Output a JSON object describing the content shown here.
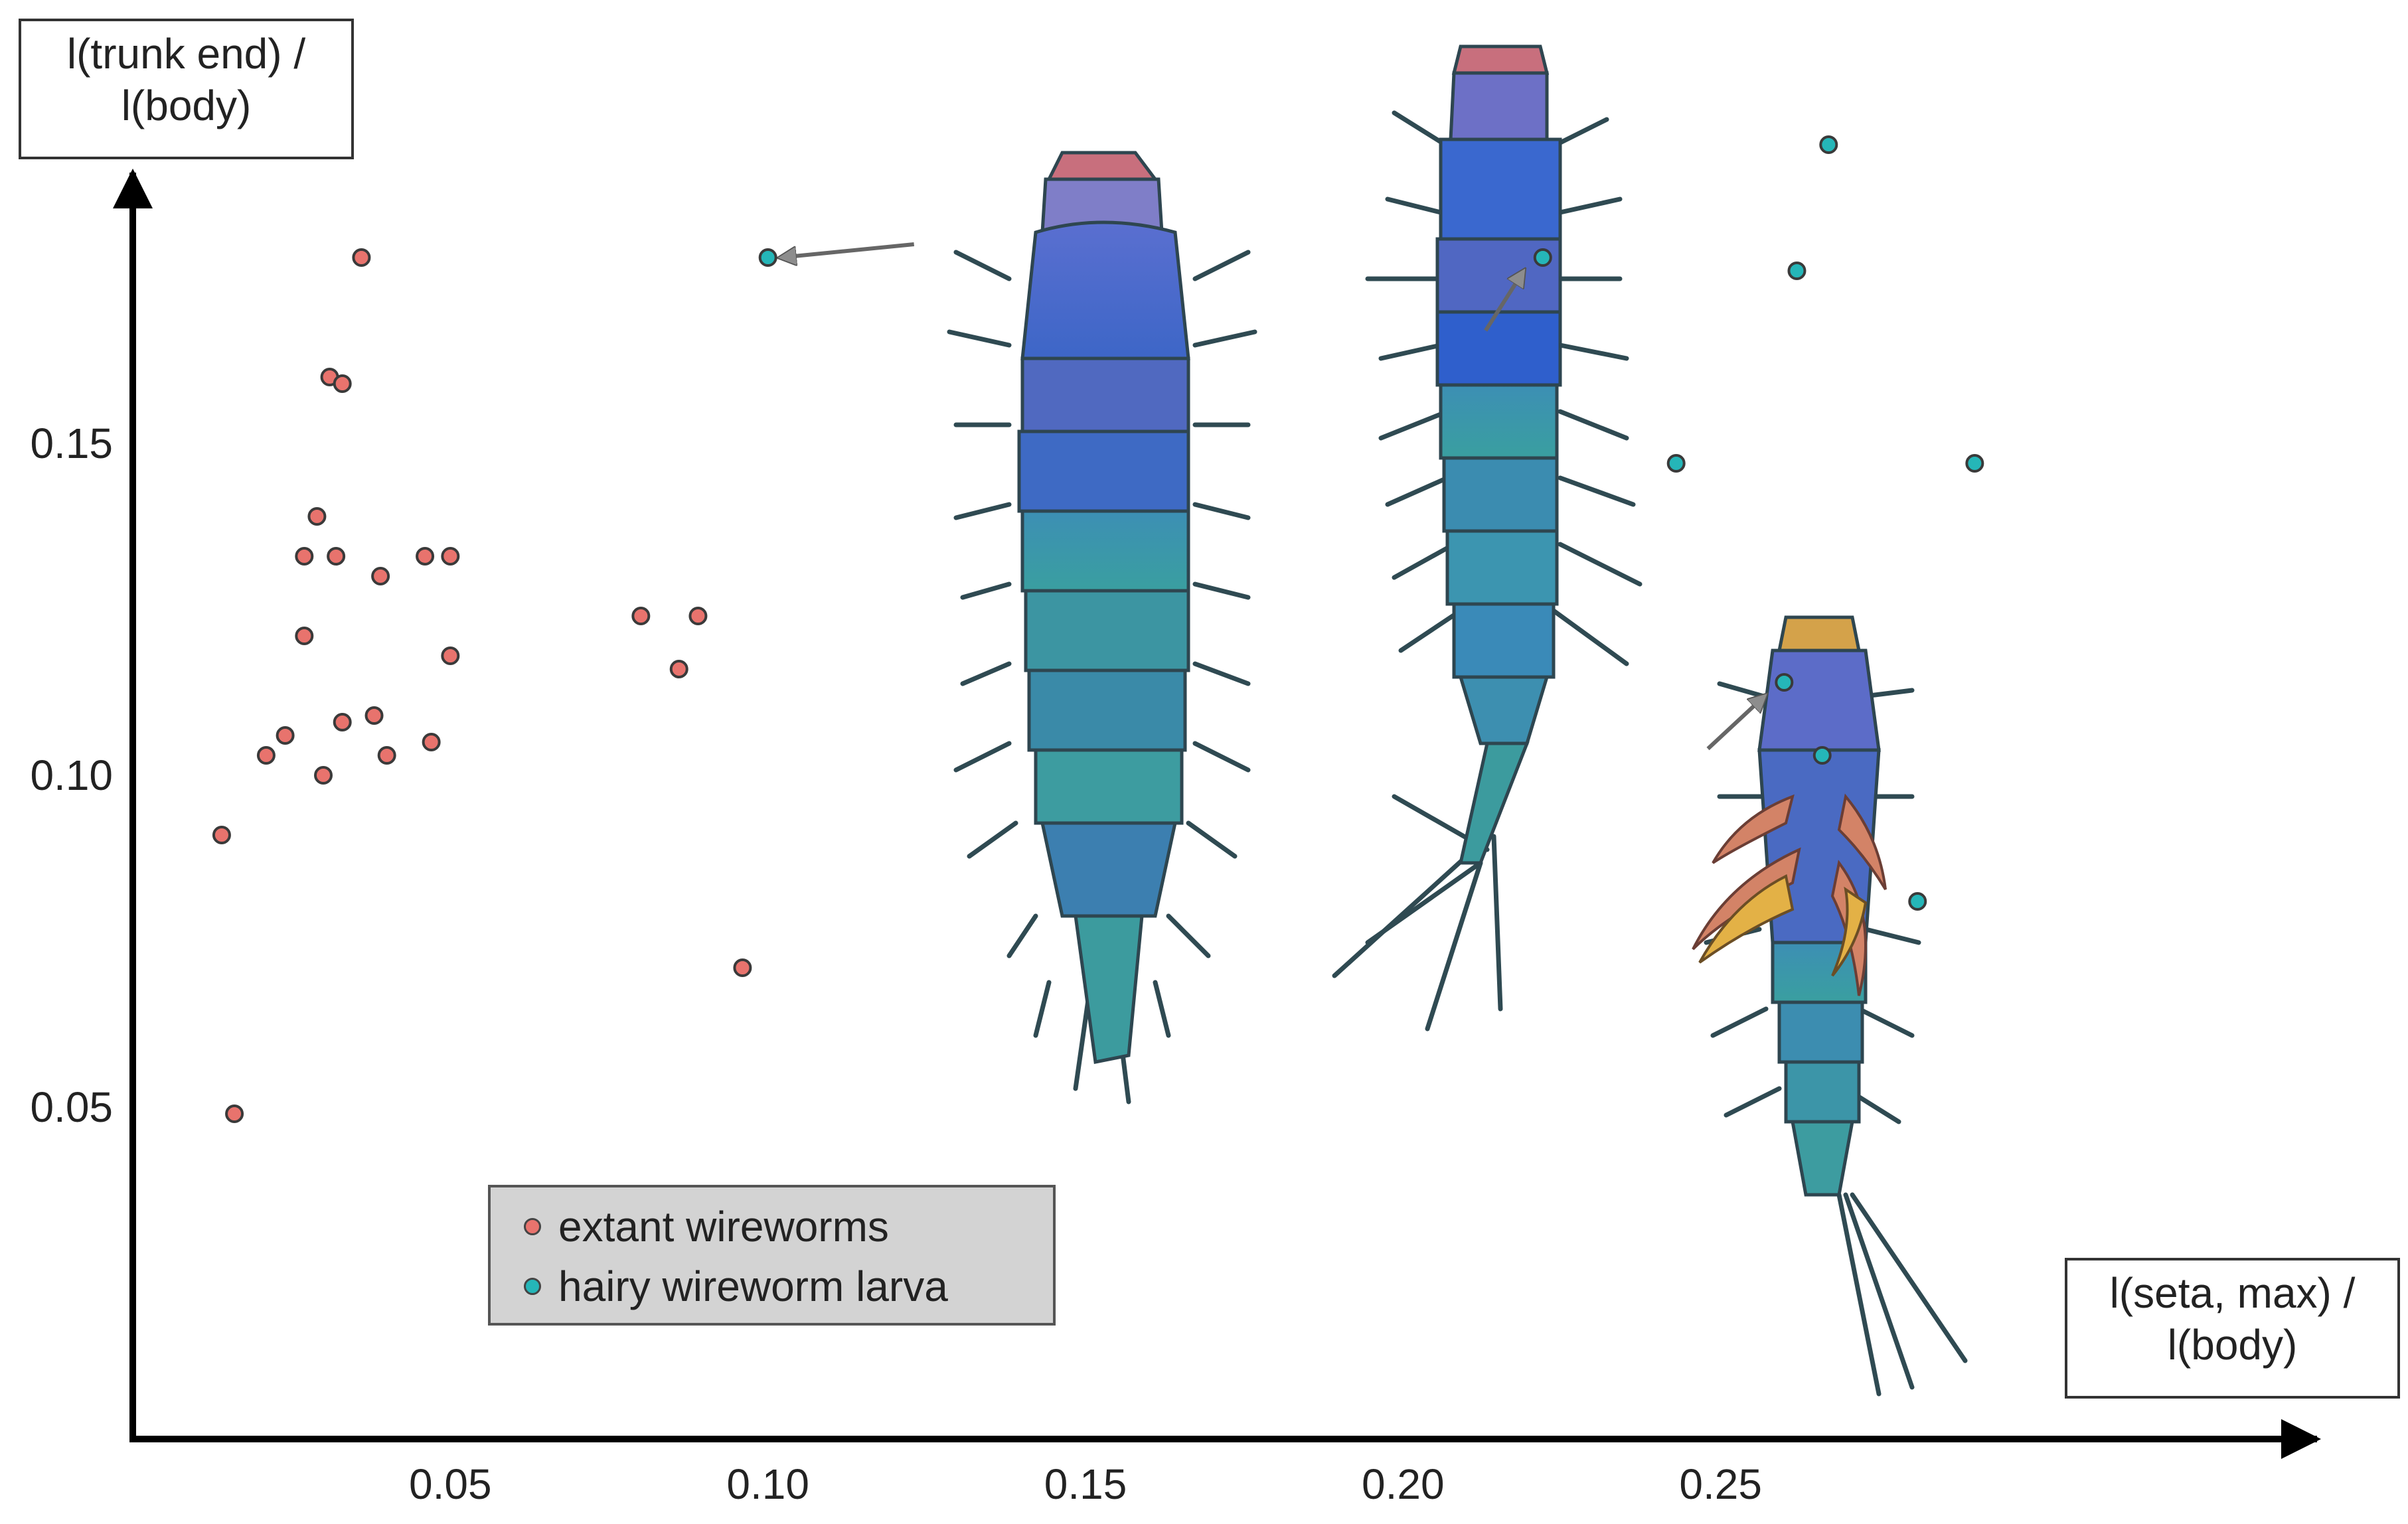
{
  "chart_data": {
    "type": "scatter",
    "xlabel": "l(seta, max) / l(body)",
    "ylabel": "l(trunk end) / l(body)",
    "xlabel_lines": [
      "l(seta, max) /",
      "l(body)"
    ],
    "ylabel_lines": [
      "l(trunk end) /",
      "l(body)"
    ],
    "xlim": [
      0.0,
      0.3
    ],
    "ylim": [
      0.0,
      0.2
    ],
    "x_ticks": [
      0.05,
      0.1,
      0.15,
      0.2,
      0.25
    ],
    "x_tick_labels": [
      "0.05",
      "0.10",
      "0.15",
      "0.20",
      "0.25"
    ],
    "y_ticks": [
      0.05,
      0.1,
      0.15
    ],
    "y_tick_labels": [
      "0.05",
      "0.10",
      "0.15"
    ],
    "grid": false,
    "legend_position": "bottom-center",
    "series": [
      {
        "name": "extant wireworms",
        "color": "#e8736d",
        "points": [
          [
            0.036,
            0.178
          ],
          [
            0.031,
            0.16
          ],
          [
            0.033,
            0.159
          ],
          [
            0.029,
            0.139
          ],
          [
            0.027,
            0.133
          ],
          [
            0.032,
            0.133
          ],
          [
            0.039,
            0.13
          ],
          [
            0.046,
            0.133
          ],
          [
            0.05,
            0.133
          ],
          [
            0.027,
            0.121
          ],
          [
            0.05,
            0.118
          ],
          [
            0.08,
            0.124
          ],
          [
            0.089,
            0.124
          ],
          [
            0.086,
            0.116
          ],
          [
            0.038,
            0.109
          ],
          [
            0.033,
            0.108
          ],
          [
            0.024,
            0.106
          ],
          [
            0.021,
            0.103
          ],
          [
            0.04,
            0.103
          ],
          [
            0.047,
            0.105
          ],
          [
            0.03,
            0.1
          ],
          [
            0.014,
            0.091
          ],
          [
            0.096,
            0.071
          ],
          [
            0.016,
            0.049
          ]
        ]
      },
      {
        "name": "hairy wireworm larva",
        "color": "#25b6b8",
        "points": [
          [
            0.1,
            0.178
          ],
          [
            0.222,
            0.178
          ],
          [
            0.267,
            0.195
          ],
          [
            0.262,
            0.176
          ],
          [
            0.243,
            0.147
          ],
          [
            0.29,
            0.147
          ],
          [
            0.26,
            0.114
          ],
          [
            0.266,
            0.103
          ],
          [
            0.281,
            0.081
          ]
        ]
      }
    ],
    "annotations": [
      {
        "type": "arrow",
        "from": [
          0.123,
          0.18
        ],
        "to": [
          0.102,
          0.178
        ]
      },
      {
        "type": "arrow",
        "from": [
          0.213,
          0.167
        ],
        "to": [
          0.219,
          0.176
        ]
      },
      {
        "type": "arrow",
        "from": [
          0.248,
          0.104
        ],
        "to": [
          0.257,
          0.112
        ]
      }
    ]
  },
  "illustrations": [
    {
      "icon": "larva-illustration-1"
    },
    {
      "icon": "larva-illustration-2"
    },
    {
      "icon": "larva-illustration-3"
    }
  ]
}
